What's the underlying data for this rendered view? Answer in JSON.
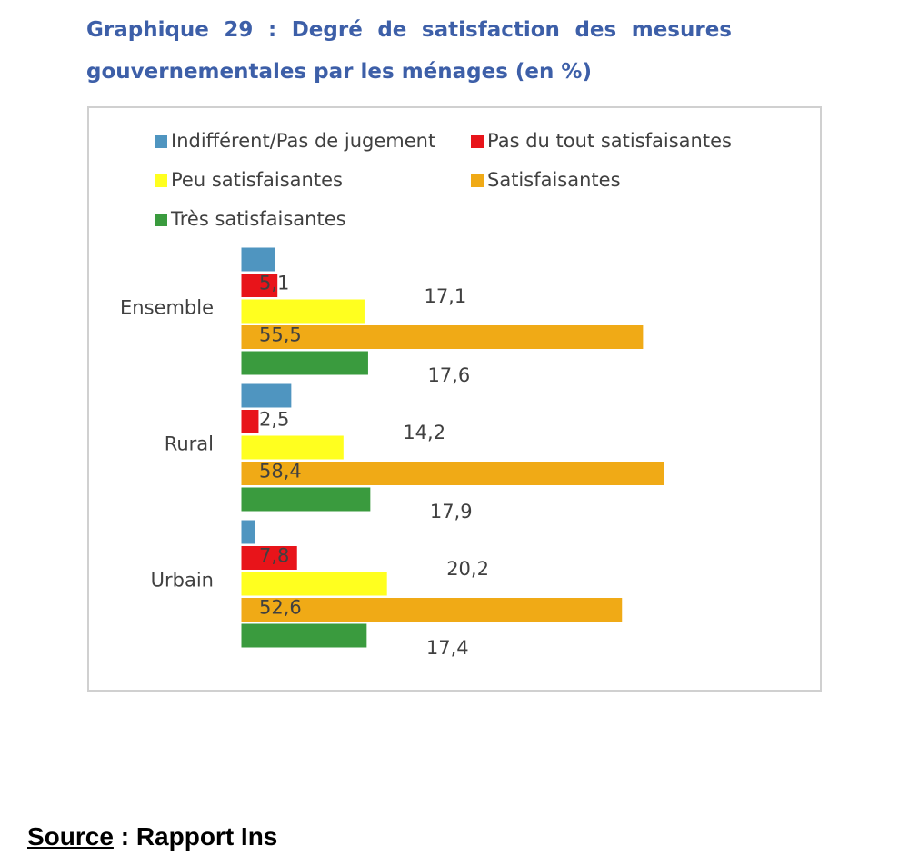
{
  "chart_data": {
    "type": "hbar",
    "title": "Graphique 29 : Degré de satisfaction des mesures gouvernementales par les ménages (en %)",
    "categories": [
      "Ensemble",
      "Rural",
      "Urbain"
    ],
    "series": [
      {
        "name": "Indifférent/Pas de jugement",
        "color": "#4f95c0",
        "values": [
          4.7,
          7.0,
          2.0
        ]
      },
      {
        "name": "Pas du tout satisfaisantes",
        "color": "#e8141a",
        "values": [
          5.1,
          2.5,
          7.8
        ],
        "value_labels": [
          "5,1",
          "2,5",
          "7,8"
        ]
      },
      {
        "name": "Peu satisfaisantes",
        "color": "#ffff1f",
        "values": [
          17.1,
          14.2,
          20.2
        ],
        "value_labels": [
          "17,1",
          "14,2",
          "20,2"
        ]
      },
      {
        "name": "Satisfaisantes",
        "color": "#f0aa16",
        "values": [
          55.5,
          58.4,
          52.6
        ],
        "value_labels": [
          "55,5",
          "58,4",
          "52,6"
        ]
      },
      {
        "name": "Très satisfaisantes",
        "color": "#3a9b3e",
        "values": [
          17.6,
          17.9,
          17.4
        ],
        "value_labels": [
          "17,6",
          "17,9",
          "17,4"
        ]
      }
    ]
  },
  "source_label": "Source",
  "source_text": ": Rapport Ins"
}
